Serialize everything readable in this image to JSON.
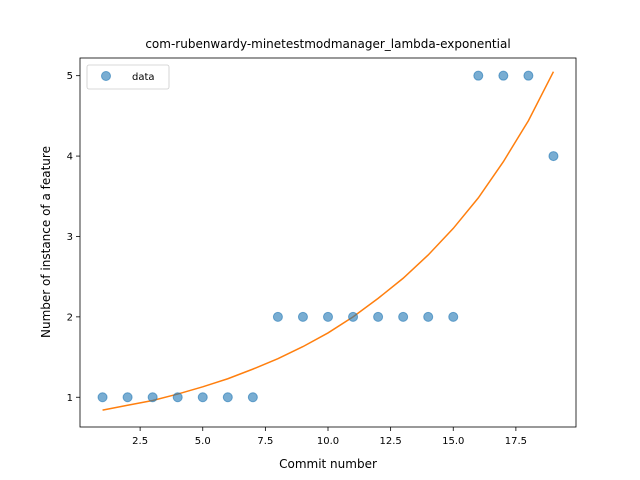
{
  "chart_data": {
    "type": "scatter",
    "title": "com-rubenwardy-minetestmodmanager_lambda-exponential",
    "xlabel": "Commit number",
    "ylabel": "Number of instance of a feature",
    "xlim": [
      0.1,
      19.9
    ],
    "ylim": [
      0.63,
      5.22
    ],
    "xticks": [
      2.5,
      5.0,
      7.5,
      10.0,
      12.5,
      15.0,
      17.5
    ],
    "xtick_labels": [
      "2.5",
      "5.0",
      "7.5",
      "10.0",
      "12.5",
      "15.0",
      "17.5"
    ],
    "yticks": [
      1,
      2,
      3,
      4,
      5
    ],
    "ytick_labels": [
      "1",
      "2",
      "3",
      "4",
      "5"
    ],
    "grid": false,
    "legend": {
      "position": "top-left",
      "entries": [
        "data"
      ]
    },
    "series": [
      {
        "name": "data",
        "kind": "scatter",
        "color": "#1f77b4",
        "x": [
          1,
          2,
          3,
          4,
          5,
          6,
          7,
          8,
          9,
          10,
          11,
          12,
          13,
          14,
          15,
          16,
          17,
          18,
          19
        ],
        "y": [
          1,
          1,
          1,
          1,
          1,
          1,
          1,
          2,
          2,
          2,
          2,
          2,
          2,
          2,
          2,
          5,
          5,
          5,
          4
        ]
      },
      {
        "kind": "line",
        "color": "#ff7f0e",
        "x": [
          1,
          2,
          3,
          4,
          5,
          6,
          7,
          8,
          9,
          10,
          11,
          12,
          13,
          14,
          15,
          16,
          17,
          18,
          19
        ],
        "y": [
          0.84,
          0.9,
          0.96,
          1.04,
          1.13,
          1.23,
          1.35,
          1.48,
          1.63,
          1.8,
          2.0,
          2.23,
          2.48,
          2.77,
          3.1,
          3.48,
          3.93,
          4.44,
          5.05
        ]
      }
    ]
  }
}
